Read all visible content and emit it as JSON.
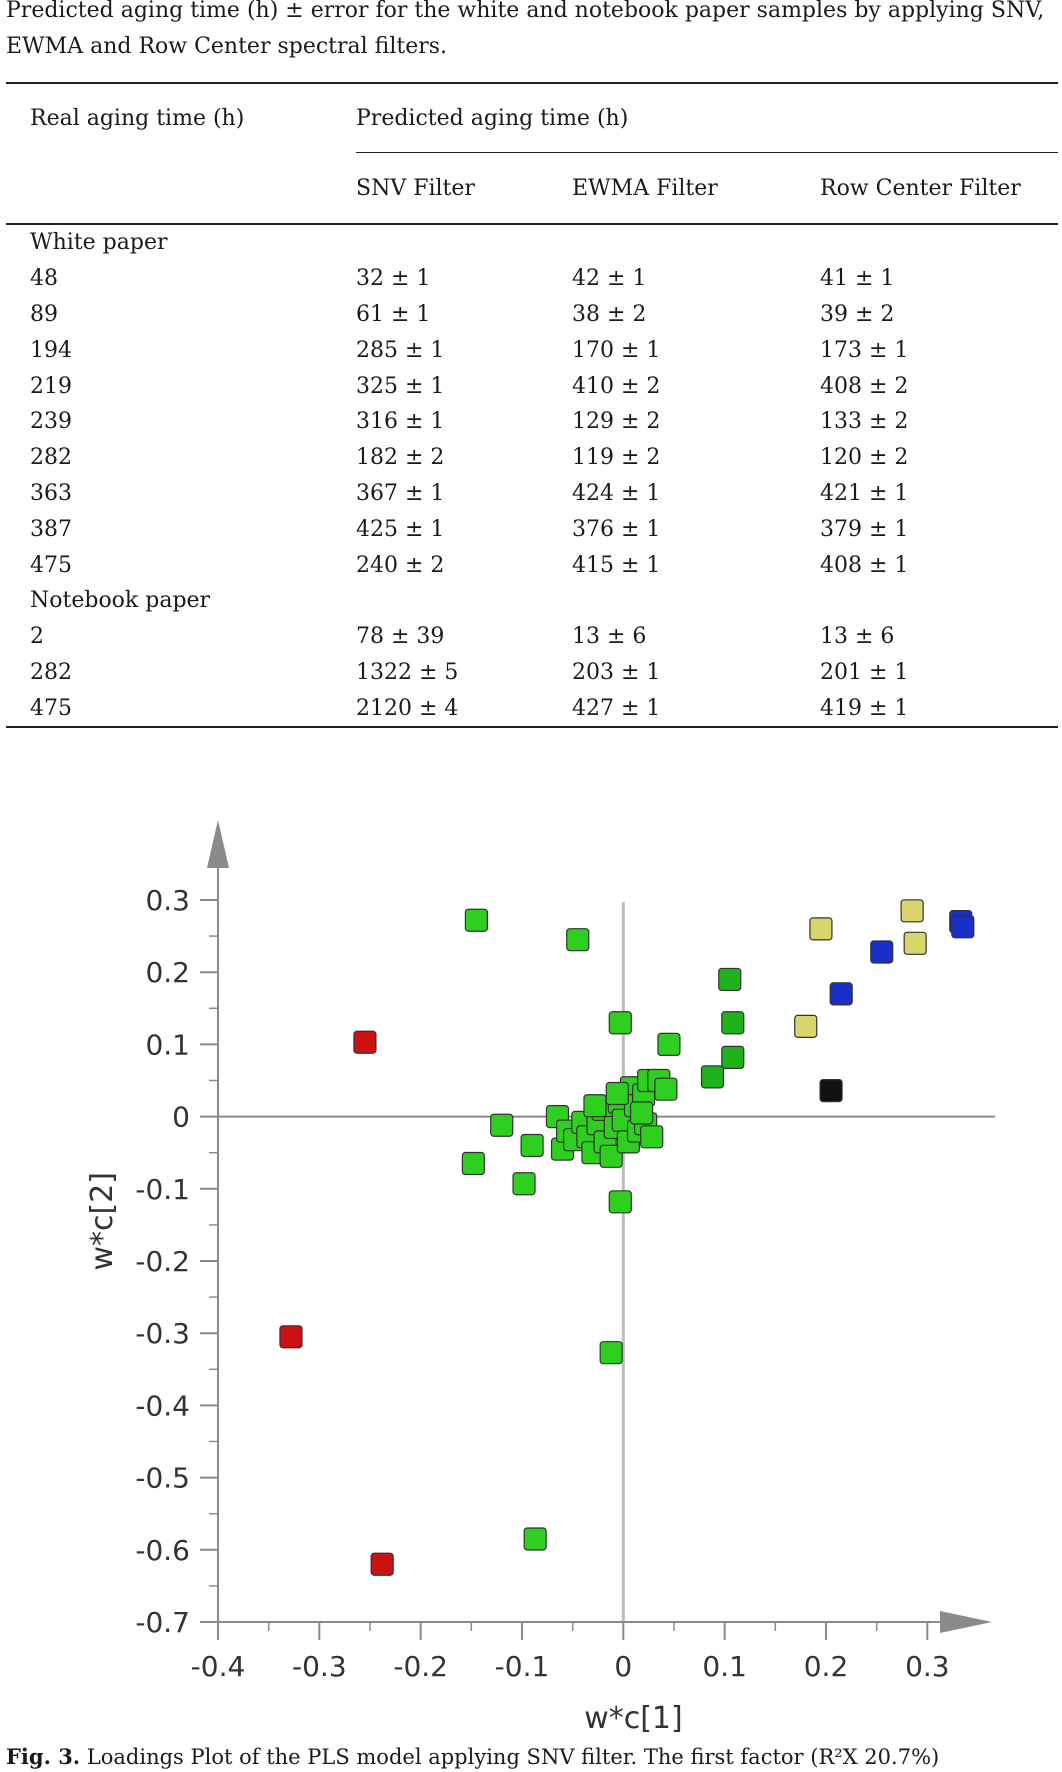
{
  "table": {
    "caption": "Predicted aging time (h) ± error for the white and notebook paper samples by applying SNV, EWMA and Row Center spectral filters.",
    "header_real": "Real aging time (h)",
    "header_predicted": "Predicted aging time (h)",
    "sub_headers": [
      "SNV Filter",
      "EWMA Filter",
      "Row Center Filter"
    ],
    "groups": [
      {
        "name": "White paper",
        "rows": [
          [
            "48",
            "32 ± 1",
            "42 ± 1",
            "41 ± 1"
          ],
          [
            "89",
            "61 ± 1",
            "38 ± 2",
            "39 ± 2"
          ],
          [
            "194",
            "285 ± 1",
            "170 ± 1",
            "173 ± 1"
          ],
          [
            "219",
            "325 ± 1",
            "410 ± 2",
            "408 ± 2"
          ],
          [
            "239",
            "316 ± 1",
            "129 ± 2",
            "133 ± 2"
          ],
          [
            "282",
            "182 ± 2",
            "119 ± 2",
            "120 ± 2"
          ],
          [
            "363",
            "367 ± 1",
            "424 ± 1",
            "421 ± 1"
          ],
          [
            "387",
            "425 ± 1",
            "376 ± 1",
            "379 ± 1"
          ],
          [
            "475",
            "240 ± 2",
            "415 ± 1",
            "408 ± 1"
          ]
        ]
      },
      {
        "name": "Notebook paper",
        "rows": [
          [
            "2",
            "78 ± 39",
            "13 ± 6",
            "13 ± 6"
          ],
          [
            "282",
            "1322 ± 5",
            "203 ± 1",
            "201 ± 1"
          ],
          [
            "475",
            "2120 ± 4",
            "427 ± 1",
            "419 ± 1"
          ]
        ]
      }
    ]
  },
  "chart_data": {
    "type": "scatter",
    "xlabel": "w*c[1]",
    "ylabel": "w*c[2]",
    "xlim": [
      -0.4,
      0.35
    ],
    "ylim": [
      -0.7,
      0.3
    ],
    "xticks": [
      -0.4,
      -0.3,
      -0.2,
      -0.1,
      0,
      0.1,
      0.2,
      0.3
    ],
    "xtick_labels": [
      "-0.4",
      "-0.3",
      "-0.2",
      "-0.1",
      "0",
      "0.1",
      "0.2",
      "0.3"
    ],
    "yticks": [
      0.3,
      0.2,
      0.1,
      0,
      -0.1,
      -0.2,
      -0.3,
      -0.4,
      -0.5,
      -0.6,
      -0.7
    ],
    "ytick_labels": [
      "0.3",
      "0.2",
      "0.1",
      "0",
      "-0.1",
      "-0.2",
      "-0.3",
      "-0.4",
      "-0.5",
      "-0.6",
      "-0.7"
    ],
    "grid": false,
    "series": [
      {
        "color": "#2ecf1e",
        "points": [
          [
            -0.145,
            0.272
          ],
          [
            -0.045,
            0.245
          ],
          [
            -0.003,
            0.13
          ],
          [
            0.045,
            0.1
          ],
          [
            -0.12,
            -0.012
          ],
          [
            -0.148,
            -0.065
          ],
          [
            -0.098,
            -0.093
          ],
          [
            -0.003,
            -0.118
          ],
          [
            -0.012,
            -0.327
          ],
          [
            -0.087,
            -0.585
          ],
          [
            -0.09,
            -0.04
          ],
          [
            -0.065,
            0
          ],
          [
            -0.06,
            -0.045
          ],
          [
            -0.055,
            -0.02
          ],
          [
            -0.048,
            -0.032
          ],
          [
            -0.04,
            -0.008
          ],
          [
            -0.035,
            -0.028
          ],
          [
            -0.03,
            -0.05
          ],
          [
            -0.025,
            -0.01
          ],
          [
            -0.02,
            0.01
          ],
          [
            -0.018,
            -0.035
          ],
          [
            -0.012,
            -0.055
          ],
          [
            -0.008,
            -0.015
          ],
          [
            -0.004,
            0.02
          ],
          [
            0,
            -0.005
          ],
          [
            0.005,
            -0.035
          ],
          [
            0.008,
            0.04
          ],
          [
            0.012,
            0.015
          ],
          [
            0.015,
            -0.02
          ],
          [
            0.02,
            0.03
          ],
          [
            0.022,
            -0.01
          ],
          [
            0.025,
            0.05
          ],
          [
            0.028,
            -0.028
          ],
          [
            0.035,
            0.05
          ],
          [
            0.042,
            0.038
          ],
          [
            0.018,
            0.005
          ],
          [
            -0.006,
            0.032
          ],
          [
            -0.028,
            0.015
          ]
        ]
      },
      {
        "color": "#1fb31b",
        "points": [
          [
            0.105,
            0.19
          ],
          [
            0.108,
            0.13
          ],
          [
            0.108,
            0.082
          ],
          [
            0.088,
            0.055
          ]
        ]
      },
      {
        "color": "#d8d56a",
        "points": [
          [
            0.195,
            0.26
          ],
          [
            0.285,
            0.285
          ],
          [
            0.288,
            0.24
          ],
          [
            0.18,
            0.125
          ]
        ]
      },
      {
        "color": "#1a2fc8",
        "points": [
          [
            0.333,
            0.27
          ],
          [
            0.335,
            0.263
          ],
          [
            0.255,
            0.228
          ],
          [
            0.215,
            0.17
          ]
        ]
      },
      {
        "color": "#cc1111",
        "points": [
          [
            -0.255,
            0.103
          ],
          [
            -0.328,
            -0.305
          ],
          [
            -0.238,
            -0.62
          ]
        ]
      },
      {
        "color": "#111111",
        "points": [
          [
            0.205,
            0.036
          ]
        ]
      }
    ]
  },
  "figure_caption": {
    "label": "Fig. 3.",
    "text": "Loadings Plot of the PLS model applying SNV filter. The first factor (R²X 20.7%)"
  }
}
